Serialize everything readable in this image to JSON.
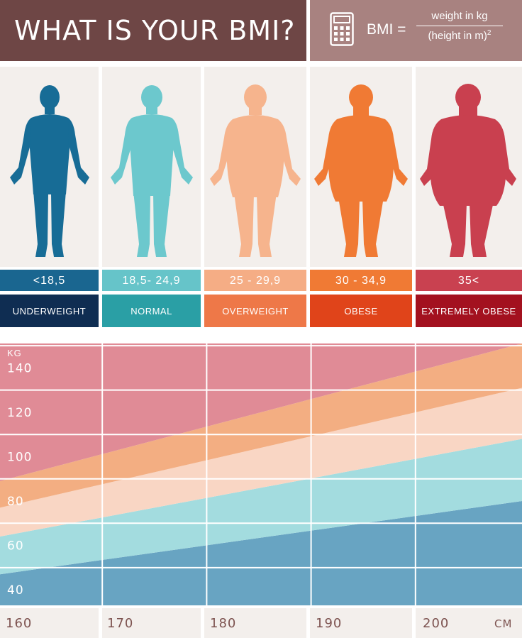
{
  "header": {
    "title": "WHAT IS YOUR BMI?",
    "bmi_label": "BMI =",
    "formula_numerator": "weight in kg",
    "formula_denominator": "(height in m)",
    "formula_exponent": "2",
    "calculator_icon": "calculator-icon"
  },
  "categories": [
    {
      "range": "<18,5",
      "label": "UNDERWEIGHT",
      "figure_color": "#176c96",
      "range_color": "#1a6690",
      "label_color": "#0f2d52"
    },
    {
      "range": "18,5- 24,9",
      "label": "NORMAL",
      "figure_color": "#6cc8cd",
      "range_color": "#66c4c9",
      "label_color": "#2a9fa5"
    },
    {
      "range": "25 - 29,9",
      "label": "OVERWEIGHT",
      "figure_color": "#f6b48d",
      "range_color": "#f5ad85",
      "label_color": "#ee7848"
    },
    {
      "range": "30 - 34,9",
      "label": "OBESE",
      "figure_color": "#f07a34",
      "range_color": "#f07a34",
      "label_color": "#e0441a"
    },
    {
      "range": "35<",
      "label": "EXTREMELY OBESE",
      "figure_color": "#c9404f",
      "range_color": "#c94150",
      "label_color": "#a3111f"
    }
  ],
  "chart_data": {
    "type": "area",
    "xlabel": "CM",
    "ylabel": "KG",
    "x_ticks": [
      "160",
      "170",
      "180",
      "190",
      "200"
    ],
    "y_ticks": [
      "40",
      "60",
      "80",
      "100",
      "120",
      "140"
    ],
    "xlim": [
      160,
      210
    ],
    "ylim": [
      33,
      151
    ],
    "bands": [
      {
        "name": "UNDERWEIGHT",
        "color": "#68a4c2",
        "lower": [
          [
            160,
            33
          ],
          [
            210,
            33
          ]
        ],
        "upper": [
          [
            160,
            47
          ],
          [
            210,
            80
          ]
        ]
      },
      {
        "name": "NORMAL",
        "color": "#a3dcdf",
        "lower": [
          [
            160,
            47
          ],
          [
            210,
            80
          ]
        ],
        "upper": [
          [
            160,
            64
          ],
          [
            210,
            108
          ]
        ]
      },
      {
        "name": "OVERWEIGHT",
        "color": "#f9d6c4",
        "lower": [
          [
            160,
            64
          ],
          [
            210,
            108
          ]
        ],
        "upper": [
          [
            160,
            77
          ],
          [
            210,
            131
          ]
        ]
      },
      {
        "name": "OBESE",
        "color": "#f3ae82",
        "lower": [
          [
            160,
            77
          ],
          [
            210,
            131
          ]
        ],
        "upper": [
          [
            160,
            89
          ],
          [
            210,
            151
          ]
        ]
      },
      {
        "name": "EXTREMELY OBESE",
        "color": "#e08b96",
        "lower": [
          [
            160,
            89
          ],
          [
            210,
            151
          ]
        ],
        "upper": [
          [
            160,
            151
          ],
          [
            210,
            151
          ]
        ]
      }
    ],
    "grid": true
  }
}
